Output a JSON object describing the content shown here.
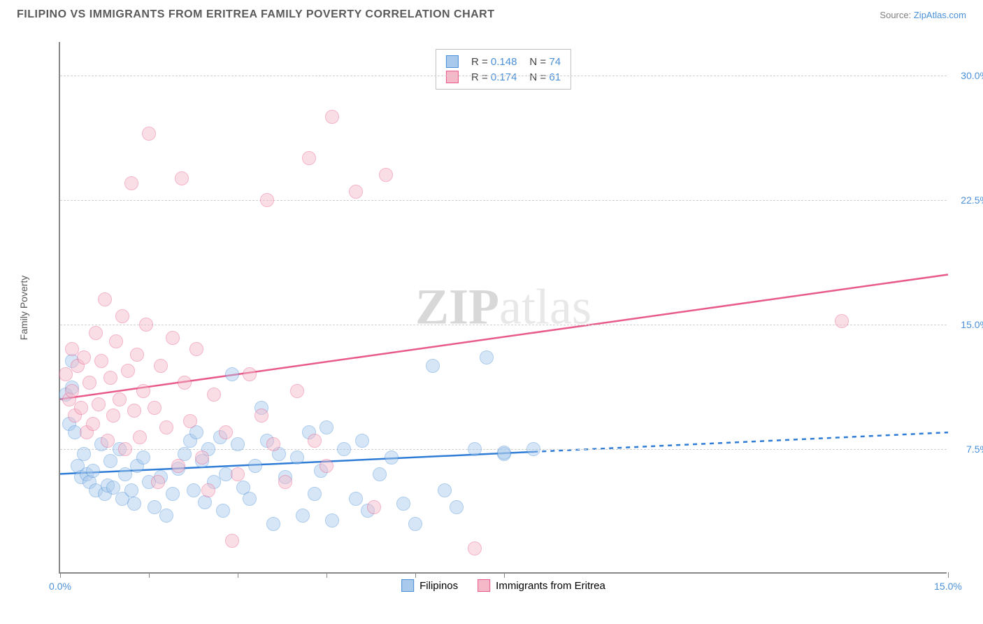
{
  "header": {
    "title": "FILIPINO VS IMMIGRANTS FROM ERITREA FAMILY POVERTY CORRELATION CHART",
    "source_label": "Source:",
    "source_name": "ZipAtlas.com"
  },
  "chart": {
    "type": "scatter",
    "y_axis_label": "Family Poverty",
    "watermark_bold": "ZIP",
    "watermark_light": "atlas",
    "xlim": [
      0,
      15
    ],
    "ylim": [
      0,
      32
    ],
    "x_ticks": [
      0,
      1.5,
      3.0,
      4.5,
      6.0,
      7.5,
      15.0
    ],
    "x_tick_labels_shown": {
      "0": "0.0%",
      "15": "15.0%"
    },
    "y_gridlines": [
      7.5,
      15.0,
      22.5,
      30.0
    ],
    "y_tick_labels": {
      "7.5": "7.5%",
      "15.0": "15.0%",
      "22.5": "22.5%",
      "30.0": "30.0%"
    },
    "grid_color": "#d0d0d0",
    "axis_color": "#888888",
    "background_color": "#ffffff",
    "marker_radius": 10,
    "marker_opacity": 0.45,
    "marker_border_opacity": 0.8,
    "series": [
      {
        "id": "filipinos",
        "name": "Filipinos",
        "color_fill": "#a8c8ec",
        "color_border": "#4a90d9",
        "trend_color": "#2e7cd6",
        "trend_width": 2.5,
        "trend": {
          "x1": 0,
          "y1": 6.0,
          "x2": 15,
          "y2": 8.5,
          "solid_until_x": 8.0
        },
        "R": "0.148",
        "N": "74",
        "points": [
          [
            0.1,
            10.8
          ],
          [
            0.15,
            9.0
          ],
          [
            0.2,
            12.8
          ],
          [
            0.2,
            11.2
          ],
          [
            0.25,
            8.5
          ],
          [
            0.3,
            6.5
          ],
          [
            0.35,
            5.8
          ],
          [
            0.4,
            7.2
          ],
          [
            0.45,
            6.0
          ],
          [
            0.5,
            5.5
          ],
          [
            0.55,
            6.2
          ],
          [
            0.6,
            5.0
          ],
          [
            0.7,
            7.8
          ],
          [
            0.75,
            4.8
          ],
          [
            0.8,
            5.3
          ],
          [
            0.85,
            6.8
          ],
          [
            0.9,
            5.2
          ],
          [
            1.0,
            7.5
          ],
          [
            1.05,
            4.5
          ],
          [
            1.1,
            6.0
          ],
          [
            1.2,
            5.0
          ],
          [
            1.25,
            4.2
          ],
          [
            1.3,
            6.5
          ],
          [
            1.4,
            7.0
          ],
          [
            1.5,
            5.5
          ],
          [
            1.6,
            4.0
          ],
          [
            1.7,
            5.8
          ],
          [
            1.8,
            3.5
          ],
          [
            1.9,
            4.8
          ],
          [
            2.0,
            6.3
          ],
          [
            2.1,
            7.2
          ],
          [
            2.2,
            8.0
          ],
          [
            2.25,
            5.0
          ],
          [
            2.3,
            8.5
          ],
          [
            2.4,
            6.8
          ],
          [
            2.45,
            4.3
          ],
          [
            2.5,
            7.5
          ],
          [
            2.6,
            5.5
          ],
          [
            2.7,
            8.2
          ],
          [
            2.75,
            3.8
          ],
          [
            2.8,
            6.0
          ],
          [
            2.9,
            12.0
          ],
          [
            3.0,
            7.8
          ],
          [
            3.1,
            5.2
          ],
          [
            3.2,
            4.5
          ],
          [
            3.3,
            6.5
          ],
          [
            3.4,
            10.0
          ],
          [
            3.5,
            8.0
          ],
          [
            3.6,
            3.0
          ],
          [
            3.7,
            7.2
          ],
          [
            3.8,
            5.8
          ],
          [
            4.0,
            7.0
          ],
          [
            4.1,
            3.5
          ],
          [
            4.2,
            8.5
          ],
          [
            4.3,
            4.8
          ],
          [
            4.4,
            6.2
          ],
          [
            4.5,
            8.8
          ],
          [
            4.6,
            3.2
          ],
          [
            4.8,
            7.5
          ],
          [
            5.0,
            4.5
          ],
          [
            5.1,
            8.0
          ],
          [
            5.2,
            3.8
          ],
          [
            5.4,
            6.0
          ],
          [
            5.6,
            7.0
          ],
          [
            5.8,
            4.2
          ],
          [
            6.0,
            3.0
          ],
          [
            6.3,
            12.5
          ],
          [
            6.5,
            5.0
          ],
          [
            6.7,
            4.0
          ],
          [
            7.0,
            7.5
          ],
          [
            7.2,
            13.0
          ],
          [
            7.5,
            7.2
          ],
          [
            7.5,
            7.3
          ],
          [
            8.0,
            7.5
          ]
        ]
      },
      {
        "id": "eritrea",
        "name": "Immigrants from Eritrea",
        "color_fill": "#f5b8c8",
        "color_border": "#e85a8a",
        "trend_color": "#e85a8a",
        "trend_width": 2.5,
        "trend": {
          "x1": 0,
          "y1": 10.5,
          "x2": 15,
          "y2": 18.0,
          "solid_until_x": 15.0
        },
        "R": "0.174",
        "N": "61",
        "points": [
          [
            0.1,
            12.0
          ],
          [
            0.15,
            10.5
          ],
          [
            0.2,
            13.5
          ],
          [
            0.2,
            11.0
          ],
          [
            0.25,
            9.5
          ],
          [
            0.3,
            12.5
          ],
          [
            0.35,
            10.0
          ],
          [
            0.4,
            13.0
          ],
          [
            0.45,
            8.5
          ],
          [
            0.5,
            11.5
          ],
          [
            0.55,
            9.0
          ],
          [
            0.6,
            14.5
          ],
          [
            0.65,
            10.2
          ],
          [
            0.7,
            12.8
          ],
          [
            0.75,
            16.5
          ],
          [
            0.8,
            8.0
          ],
          [
            0.85,
            11.8
          ],
          [
            0.9,
            9.5
          ],
          [
            0.95,
            14.0
          ],
          [
            1.0,
            10.5
          ],
          [
            1.05,
            15.5
          ],
          [
            1.1,
            7.5
          ],
          [
            1.15,
            12.2
          ],
          [
            1.2,
            23.5
          ],
          [
            1.25,
            9.8
          ],
          [
            1.3,
            13.2
          ],
          [
            1.35,
            8.2
          ],
          [
            1.4,
            11.0
          ],
          [
            1.45,
            15.0
          ],
          [
            1.5,
            26.5
          ],
          [
            1.6,
            10.0
          ],
          [
            1.65,
            5.5
          ],
          [
            1.7,
            12.5
          ],
          [
            1.8,
            8.8
          ],
          [
            1.9,
            14.2
          ],
          [
            2.0,
            6.5
          ],
          [
            2.05,
            23.8
          ],
          [
            2.1,
            11.5
          ],
          [
            2.2,
            9.2
          ],
          [
            2.3,
            13.5
          ],
          [
            2.4,
            7.0
          ],
          [
            2.5,
            5.0
          ],
          [
            2.6,
            10.8
          ],
          [
            2.8,
            8.5
          ],
          [
            2.9,
            2.0
          ],
          [
            3.0,
            6.0
          ],
          [
            3.2,
            12.0
          ],
          [
            3.4,
            9.5
          ],
          [
            3.5,
            22.5
          ],
          [
            3.6,
            7.8
          ],
          [
            3.8,
            5.5
          ],
          [
            4.0,
            11.0
          ],
          [
            4.2,
            25.0
          ],
          [
            4.3,
            8.0
          ],
          [
            4.5,
            6.5
          ],
          [
            4.6,
            27.5
          ],
          [
            5.0,
            23.0
          ],
          [
            5.3,
            4.0
          ],
          [
            5.5,
            24.0
          ],
          [
            7.0,
            1.5
          ],
          [
            13.2,
            15.2
          ]
        ]
      }
    ],
    "legend_top": {
      "r_label": "R =",
      "n_label": "N ="
    },
    "legend_bottom": [
      {
        "series": "filipinos"
      },
      {
        "series": "eritrea"
      }
    ]
  }
}
